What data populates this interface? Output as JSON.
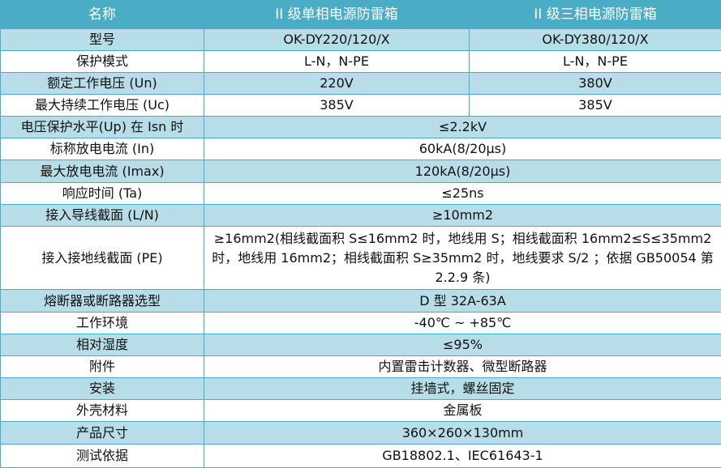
{
  "header": [
    "名称",
    "II 级单相电源防雷箱",
    "II 级三相电源防雷箱"
  ],
  "colors": {
    "header": "#4bacc6",
    "band": "#b7dde8",
    "border": "#4bacc6"
  },
  "rows": [
    {
      "label": "型号",
      "values": [
        "OK-DY220/120/X",
        "OK-DY380/120/X"
      ]
    },
    {
      "label": "保护模式",
      "values": [
        "L-N，N-PE",
        "L-N，N-PE"
      ]
    },
    {
      "label": "额定工作电压 (Un)",
      "values": [
        "220V",
        "380V"
      ]
    },
    {
      "label": "最大持续工作电压 (Uc)",
      "values": [
        "385V",
        "385V"
      ]
    },
    {
      "label": "电压保护水平(Up) 在 Isn 时",
      "values": [
        "≤2.2kV"
      ]
    },
    {
      "label": "标称放电电流 (In)",
      "values": [
        "60kA(8/20μs)"
      ]
    },
    {
      "label": "最大放电电流 (Imax)",
      "values": [
        "120kA(8/20μs)"
      ]
    },
    {
      "label": "响应时间 (Ta)",
      "values": [
        "≤25ns"
      ]
    },
    {
      "label": "接入导线截面 (L/N)",
      "values": [
        "≥10mm2"
      ]
    },
    {
      "label": "接入接地线截面 (PE)",
      "values": [
        "≥16mm2(相线截面积 S≤16mm2 时，地线用 S；相线截面积 16mm2≤S≤35mm2 时，地线用 16mm2；相线截面积 S≥35mm2 时，地线要求 S/2 ；依据 GB50054 第 2.2.9 条)"
      ]
    },
    {
      "label": "熔断器或断路器选型",
      "values": [
        "D 型 32A-63A"
      ]
    },
    {
      "label": "工作环境",
      "values": [
        "-40℃ ~ +85℃"
      ]
    },
    {
      "label": "相对湿度",
      "values": [
        "≤95%"
      ]
    },
    {
      "label": "附件",
      "values": [
        "内置雷击计数器、微型断路器"
      ]
    },
    {
      "label": "安装",
      "values": [
        "挂墙式，螺丝固定"
      ]
    },
    {
      "label": "外壳材料",
      "values": [
        "金属板"
      ]
    },
    {
      "label": "产品尺寸",
      "values": [
        "360×260×130mm"
      ]
    },
    {
      "label": "测试依据",
      "values": [
        "GB18802.1、IEC61643-1"
      ]
    }
  ]
}
